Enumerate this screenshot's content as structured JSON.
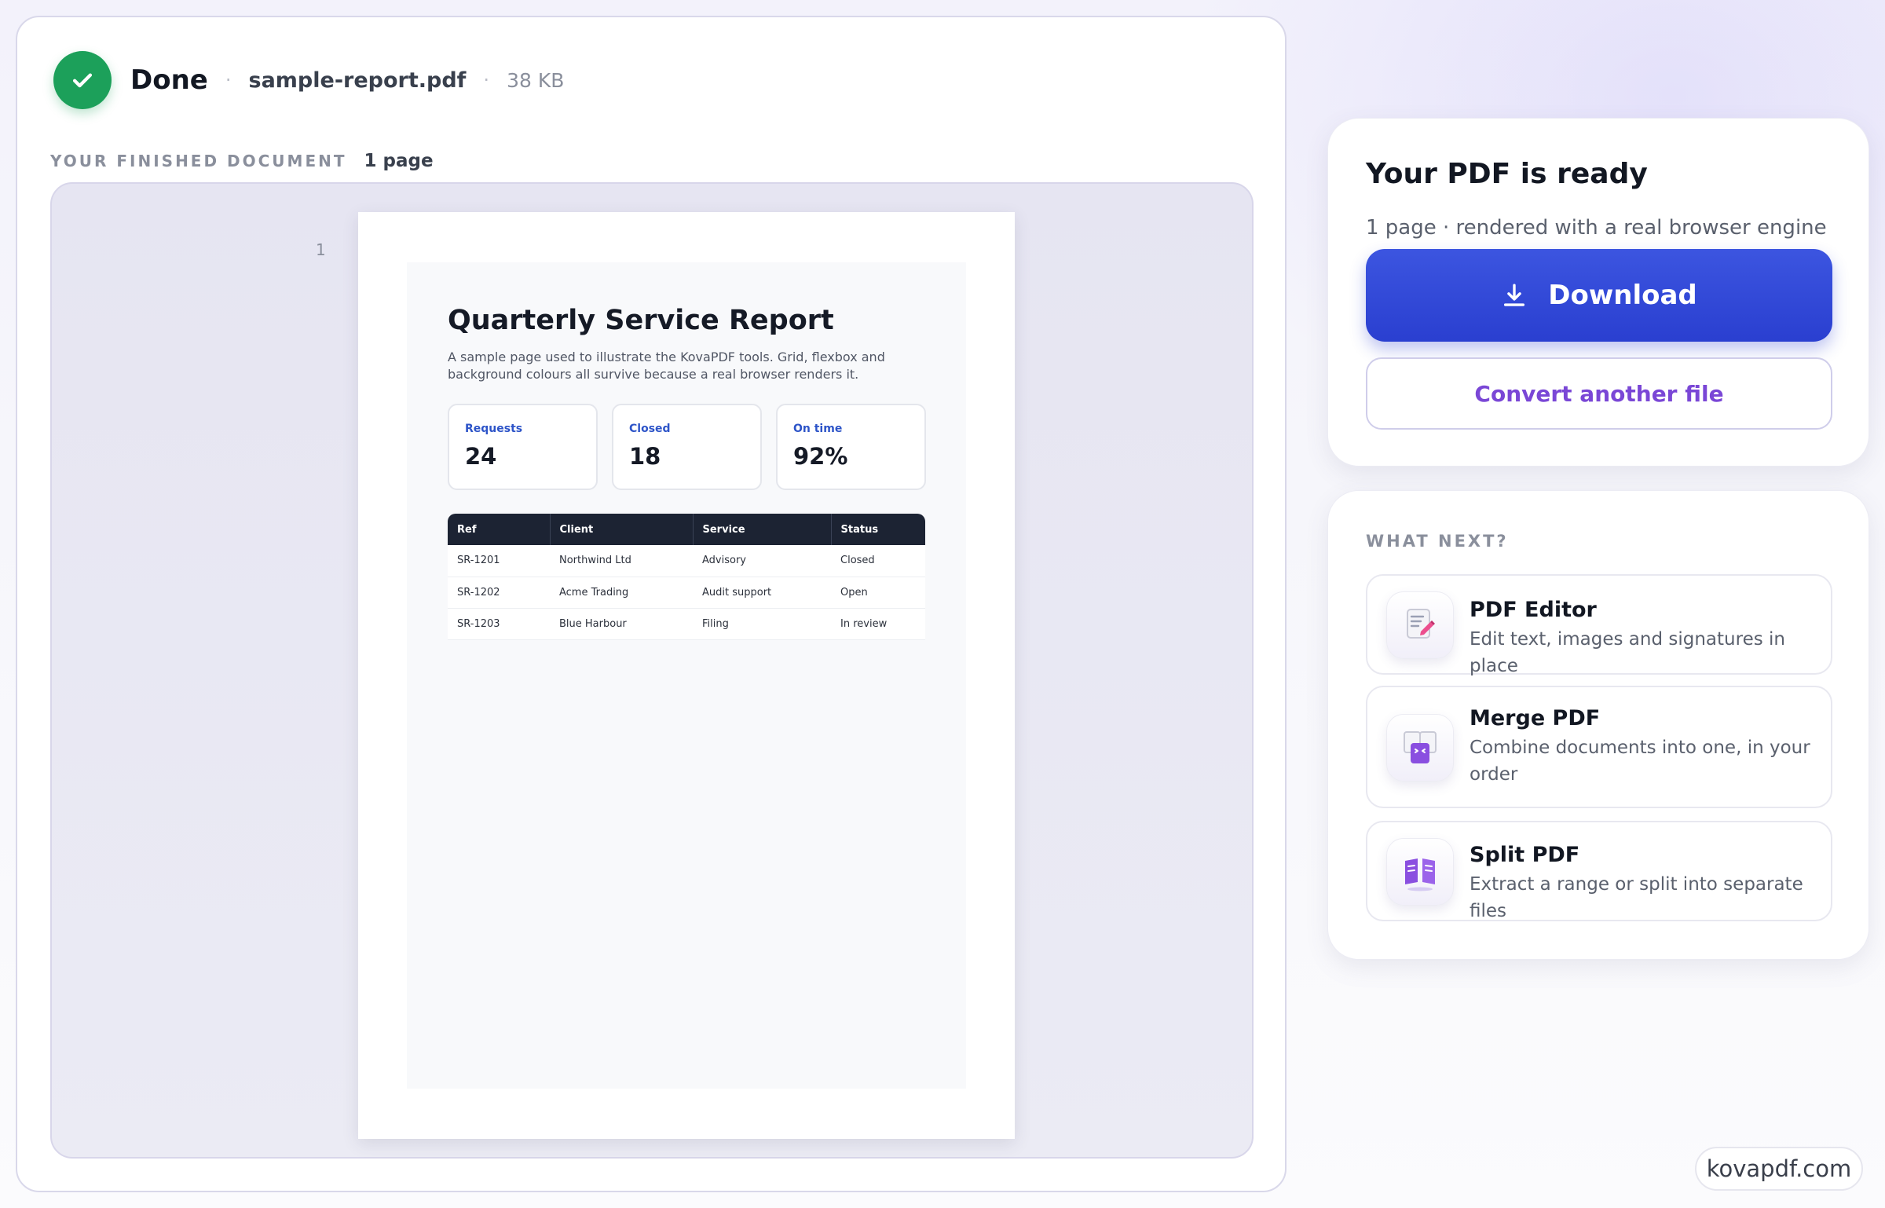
{
  "header": {
    "status": "Done",
    "separator": "·",
    "filename": "sample-report.pdf",
    "filesize": "38 KB"
  },
  "document": {
    "section_label": "YOUR FINISHED DOCUMENT",
    "page_count": "1 page",
    "page_number": "1",
    "report": {
      "title": "Quarterly Service Report",
      "description": "A sample page used to illustrate the KovaPDF tools. Grid, flexbox and background colours all survive because a real browser renders it.",
      "stats": [
        {
          "label": "Requests",
          "value": "24"
        },
        {
          "label": "Closed",
          "value": "18"
        },
        {
          "label": "On time",
          "value": "92%"
        }
      ],
      "table": {
        "columns": [
          "Ref",
          "Client",
          "Service",
          "Status"
        ],
        "rows": [
          [
            "SR-1201",
            "Northwind Ltd",
            "Advisory",
            "Closed"
          ],
          [
            "SR-1202",
            "Acme Trading",
            "Audit support",
            "Open"
          ],
          [
            "SR-1203",
            "Blue Harbour",
            "Filing",
            "In review"
          ]
        ]
      }
    }
  },
  "ready_panel": {
    "title": "Your PDF is ready",
    "subtitle": "1 page · rendered with a real browser engine",
    "download_label": "Download",
    "convert_label": "Convert another file"
  },
  "next_panel": {
    "label": "WHAT NEXT?",
    "tools": [
      {
        "name": "PDF Editor",
        "description": "Edit text, images and signatures in place",
        "icon": "pdf-editor-icon"
      },
      {
        "name": "Merge PDF",
        "description": "Combine documents into one, in your order",
        "icon": "merge-pdf-icon"
      },
      {
        "name": "Split PDF",
        "description": "Extract a range or split into separate files",
        "icon": "split-pdf-icon"
      }
    ]
  },
  "footer": {
    "brand": "kovapdf.com"
  },
  "colors": {
    "success": "#1ca05a",
    "primary": "#2a3fd0",
    "accent_purple": "#7a47d6",
    "table_header": "#1c2333"
  }
}
